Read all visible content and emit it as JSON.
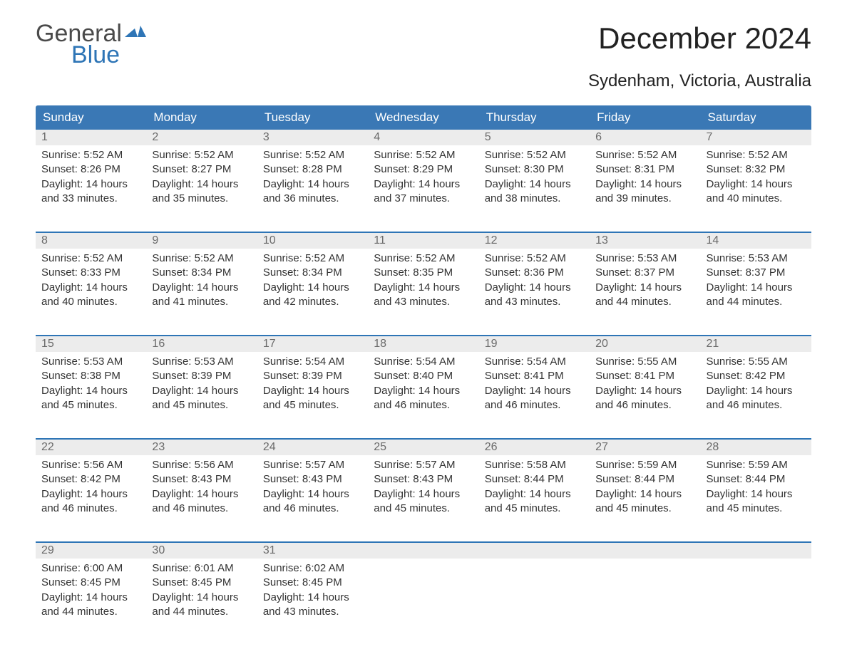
{
  "brand": {
    "word1": "General",
    "word2": "Blue"
  },
  "title": "December 2024",
  "subtitle": "Sydenham, Victoria, Australia",
  "colors": {
    "header_bg": "#3a78b5",
    "header_text": "#ffffff",
    "week_border": "#2e75b6",
    "daynum_bg": "#ececec",
    "daynum_text": "#6a6a6a",
    "body_text": "#333333",
    "brand_gray": "#4a4a4a",
    "brand_blue": "#2e75b6",
    "page_bg": "#ffffff"
  },
  "layout": {
    "columns": 7,
    "cell_font_size": 15,
    "title_font_size": 42,
    "subtitle_font_size": 24,
    "dayname_font_size": 17
  },
  "daynames": [
    "Sunday",
    "Monday",
    "Tuesday",
    "Wednesday",
    "Thursday",
    "Friday",
    "Saturday"
  ],
  "weeks": [
    [
      {
        "num": "1",
        "sunrise": "5:52 AM",
        "sunset": "8:26 PM",
        "daylight": "14 hours and 33 minutes."
      },
      {
        "num": "2",
        "sunrise": "5:52 AM",
        "sunset": "8:27 PM",
        "daylight": "14 hours and 35 minutes."
      },
      {
        "num": "3",
        "sunrise": "5:52 AM",
        "sunset": "8:28 PM",
        "daylight": "14 hours and 36 minutes."
      },
      {
        "num": "4",
        "sunrise": "5:52 AM",
        "sunset": "8:29 PM",
        "daylight": "14 hours and 37 minutes."
      },
      {
        "num": "5",
        "sunrise": "5:52 AM",
        "sunset": "8:30 PM",
        "daylight": "14 hours and 38 minutes."
      },
      {
        "num": "6",
        "sunrise": "5:52 AM",
        "sunset": "8:31 PM",
        "daylight": "14 hours and 39 minutes."
      },
      {
        "num": "7",
        "sunrise": "5:52 AM",
        "sunset": "8:32 PM",
        "daylight": "14 hours and 40 minutes."
      }
    ],
    [
      {
        "num": "8",
        "sunrise": "5:52 AM",
        "sunset": "8:33 PM",
        "daylight": "14 hours and 40 minutes."
      },
      {
        "num": "9",
        "sunrise": "5:52 AM",
        "sunset": "8:34 PM",
        "daylight": "14 hours and 41 minutes."
      },
      {
        "num": "10",
        "sunrise": "5:52 AM",
        "sunset": "8:34 PM",
        "daylight": "14 hours and 42 minutes."
      },
      {
        "num": "11",
        "sunrise": "5:52 AM",
        "sunset": "8:35 PM",
        "daylight": "14 hours and 43 minutes."
      },
      {
        "num": "12",
        "sunrise": "5:52 AM",
        "sunset": "8:36 PM",
        "daylight": "14 hours and 43 minutes."
      },
      {
        "num": "13",
        "sunrise": "5:53 AM",
        "sunset": "8:37 PM",
        "daylight": "14 hours and 44 minutes."
      },
      {
        "num": "14",
        "sunrise": "5:53 AM",
        "sunset": "8:37 PM",
        "daylight": "14 hours and 44 minutes."
      }
    ],
    [
      {
        "num": "15",
        "sunrise": "5:53 AM",
        "sunset": "8:38 PM",
        "daylight": "14 hours and 45 minutes."
      },
      {
        "num": "16",
        "sunrise": "5:53 AM",
        "sunset": "8:39 PM",
        "daylight": "14 hours and 45 minutes."
      },
      {
        "num": "17",
        "sunrise": "5:54 AM",
        "sunset": "8:39 PM",
        "daylight": "14 hours and 45 minutes."
      },
      {
        "num": "18",
        "sunrise": "5:54 AM",
        "sunset": "8:40 PM",
        "daylight": "14 hours and 46 minutes."
      },
      {
        "num": "19",
        "sunrise": "5:54 AM",
        "sunset": "8:41 PM",
        "daylight": "14 hours and 46 minutes."
      },
      {
        "num": "20",
        "sunrise": "5:55 AM",
        "sunset": "8:41 PM",
        "daylight": "14 hours and 46 minutes."
      },
      {
        "num": "21",
        "sunrise": "5:55 AM",
        "sunset": "8:42 PM",
        "daylight": "14 hours and 46 minutes."
      }
    ],
    [
      {
        "num": "22",
        "sunrise": "5:56 AM",
        "sunset": "8:42 PM",
        "daylight": "14 hours and 46 minutes."
      },
      {
        "num": "23",
        "sunrise": "5:56 AM",
        "sunset": "8:43 PM",
        "daylight": "14 hours and 46 minutes."
      },
      {
        "num": "24",
        "sunrise": "5:57 AM",
        "sunset": "8:43 PM",
        "daylight": "14 hours and 46 minutes."
      },
      {
        "num": "25",
        "sunrise": "5:57 AM",
        "sunset": "8:43 PM",
        "daylight": "14 hours and 45 minutes."
      },
      {
        "num": "26",
        "sunrise": "5:58 AM",
        "sunset": "8:44 PM",
        "daylight": "14 hours and 45 minutes."
      },
      {
        "num": "27",
        "sunrise": "5:59 AM",
        "sunset": "8:44 PM",
        "daylight": "14 hours and 45 minutes."
      },
      {
        "num": "28",
        "sunrise": "5:59 AM",
        "sunset": "8:44 PM",
        "daylight": "14 hours and 45 minutes."
      }
    ],
    [
      {
        "num": "29",
        "sunrise": "6:00 AM",
        "sunset": "8:45 PM",
        "daylight": "14 hours and 44 minutes."
      },
      {
        "num": "30",
        "sunrise": "6:01 AM",
        "sunset": "8:45 PM",
        "daylight": "14 hours and 44 minutes."
      },
      {
        "num": "31",
        "sunrise": "6:02 AM",
        "sunset": "8:45 PM",
        "daylight": "14 hours and 43 minutes."
      },
      {
        "empty": true
      },
      {
        "empty": true
      },
      {
        "empty": true
      },
      {
        "empty": true
      }
    ]
  ],
  "labels": {
    "sunrise_prefix": "Sunrise: ",
    "sunset_prefix": "Sunset: ",
    "daylight_prefix": "Daylight: "
  }
}
